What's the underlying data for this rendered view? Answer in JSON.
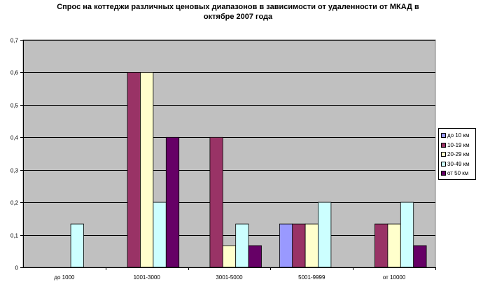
{
  "title": {
    "line1": "Спрос на коттеджи различных ценовых диапазонов в зависимости от удаленности от МКАД в",
    "line2": "октябре 2007 года"
  },
  "chart_data": {
    "type": "bar",
    "categories": [
      "до 1000",
      "1001-3000",
      "3001-5000",
      "5001-9999",
      "от 10000"
    ],
    "series": [
      {
        "name": "до 10 км",
        "color": "#9999ff",
        "values": [
          0,
          0,
          0,
          0.1333,
          0
        ]
      },
      {
        "name": "10-19 км",
        "color": "#993366",
        "values": [
          0,
          0.6,
          0.4,
          0.1333,
          0.1333
        ]
      },
      {
        "name": "20-29 км",
        "color": "#ffffcc",
        "values": [
          0,
          0.6,
          0.0667,
          0.1333,
          0.1333
        ]
      },
      {
        "name": "30-49 км",
        "color": "#ccffff",
        "values": [
          0.1333,
          0.2,
          0.1333,
          0.2,
          0.2
        ]
      },
      {
        "name": "от 50 км",
        "color": "#660066",
        "values": [
          0,
          0.4,
          0.0667,
          0,
          0.0667
        ]
      }
    ],
    "ylim": [
      0,
      0.7
    ],
    "yticks": [
      "0",
      "0,1",
      "0,2",
      "0,3",
      "0,4",
      "0,5",
      "0,6",
      "0,7"
    ],
    "plot_background": "#c0c0c0",
    "grid": true,
    "legend_position": "right"
  }
}
